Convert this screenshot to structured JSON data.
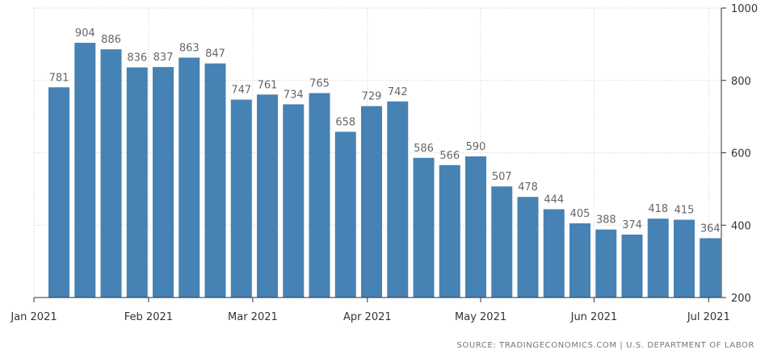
{
  "chart_data": {
    "type": "bar",
    "categories": [
      "2021-01-02",
      "2021-01-09",
      "2021-01-16",
      "2021-01-23",
      "2021-01-30",
      "2021-02-06",
      "2021-02-13",
      "2021-02-20",
      "2021-02-27",
      "2021-03-06",
      "2021-03-13",
      "2021-03-20",
      "2021-03-27",
      "2021-04-03",
      "2021-04-10",
      "2021-04-17",
      "2021-04-24",
      "2021-05-01",
      "2021-05-08",
      "2021-05-15",
      "2021-05-22",
      "2021-05-29",
      "2021-06-05",
      "2021-06-12",
      "2021-06-19",
      "2021-06-26"
    ],
    "values": [
      781,
      904,
      886,
      836,
      837,
      863,
      847,
      747,
      761,
      734,
      765,
      658,
      729,
      742,
      586,
      566,
      590,
      507,
      478,
      444,
      405,
      388,
      374,
      418,
      415,
      364
    ],
    "x_ticks": [
      "Jan 2021",
      "Feb 2021",
      "Mar 2021",
      "Apr 2021",
      "May 2021",
      "Jun 2021",
      "Jul 2021"
    ],
    "y_ticks": [
      "200",
      "400",
      "600",
      "800",
      "1000"
    ],
    "ylim": [
      200,
      1000
    ],
    "y_axis_side": "right",
    "grid": true,
    "bar_color": "#4682b4",
    "label_color": "#666666"
  },
  "source": "SOURCE: TRADINGECONOMICS.COM | U.S. DEPARTMENT OF LABOR"
}
